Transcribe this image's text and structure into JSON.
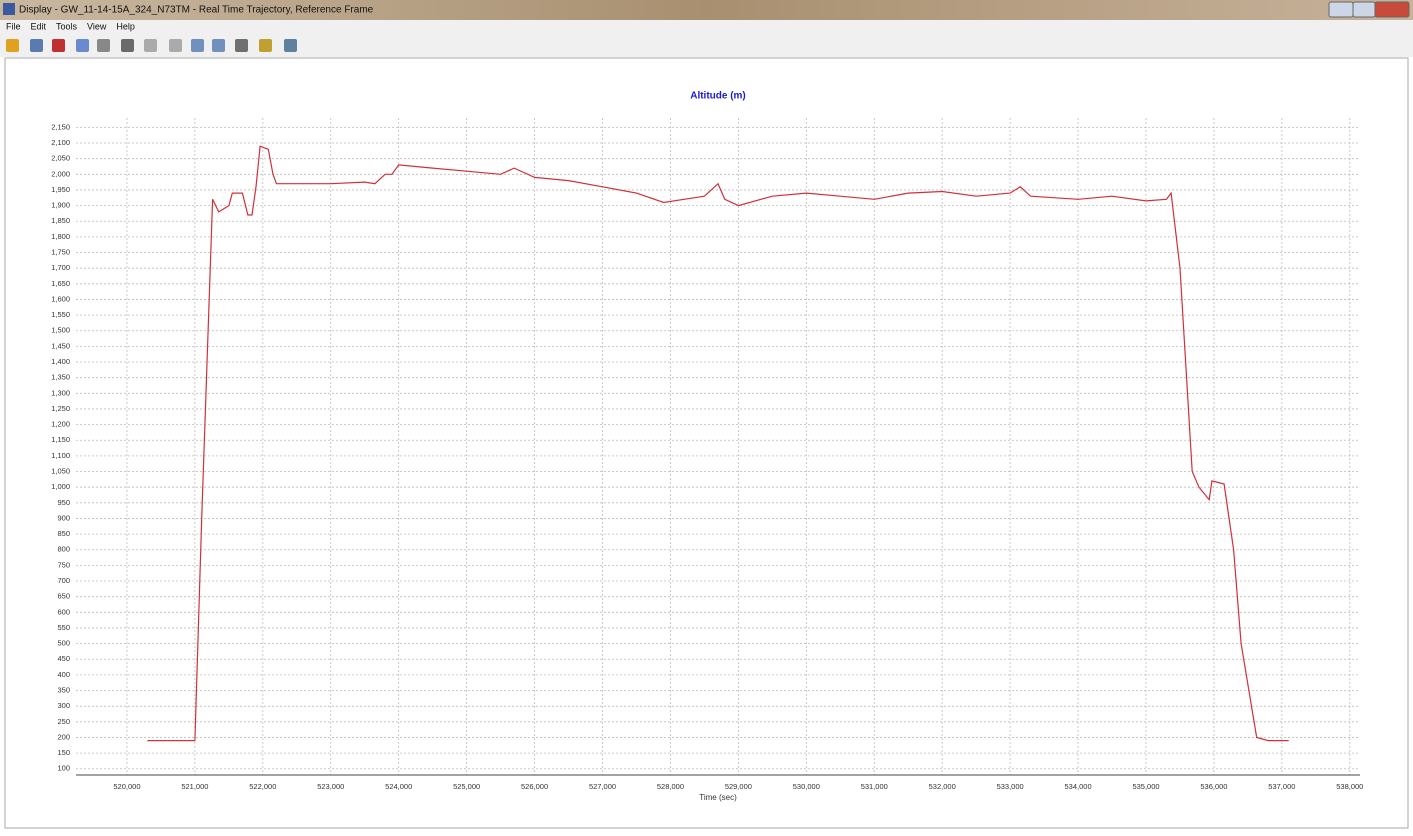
{
  "window": {
    "title": "Display - GW_11-14-15A_324_N73TM - Real Time Trajectory, Reference Frame",
    "menu": [
      "File",
      "Edit",
      "Tools",
      "View",
      "Help"
    ]
  },
  "chart_data": {
    "type": "line",
    "title": "Altitude (m)",
    "x_label": "Time (sec)",
    "color": "#d0303a",
    "grid": true,
    "x": [
      520300,
      521000,
      521100,
      521260,
      521350,
      521500,
      521550,
      521700,
      521780,
      521840,
      521900,
      521960,
      522080,
      522150,
      522200,
      523000,
      523500,
      523650,
      523800,
      523900,
      524000,
      524500,
      525000,
      525500,
      525700,
      526000,
      526500,
      527000,
      527500,
      527900,
      528200,
      528500,
      528700,
      528800,
      529000,
      529500,
      530000,
      530500,
      531000,
      531500,
      532000,
      532500,
      533000,
      533150,
      533300,
      534000,
      534500,
      535000,
      535300,
      535370,
      535500,
      535680,
      535780,
      535930,
      535970,
      536150,
      536290,
      536400,
      536630,
      536800,
      537100
    ],
    "values": [
      190,
      190,
      900,
      1920,
      1880,
      1900,
      1940,
      1940,
      1870,
      1870,
      1960,
      2090,
      2080,
      2000,
      1970,
      1970,
      1975,
      1970,
      2000,
      2000,
      2030,
      2020,
      2010,
      2000,
      2020,
      1990,
      1980,
      1960,
      1940,
      1910,
      1920,
      1930,
      1970,
      1920,
      1900,
      1930,
      1940,
      1930,
      1920,
      1940,
      1945,
      1930,
      1940,
      1960,
      1930,
      1920,
      1930,
      1915,
      1920,
      1940,
      1700,
      1050,
      1000,
      960,
      1020,
      1010,
      800,
      500,
      200,
      190,
      190
    ],
    "xlim": [
      519250,
      538150
    ],
    "ylim": [
      80,
      2180
    ],
    "xticks": [
      {
        "value": 520000,
        "label": "520,000"
      },
      {
        "value": 521000,
        "label": "521,000"
      },
      {
        "value": 522000,
        "label": "522,000"
      },
      {
        "value": 523000,
        "label": "523,000"
      },
      {
        "value": 524000,
        "label": "524,000"
      },
      {
        "value": 525000,
        "label": "525,000"
      },
      {
        "value": 526000,
        "label": "526,000"
      },
      {
        "value": 527000,
        "label": "527,000"
      },
      {
        "value": 528000,
        "label": "528,000"
      },
      {
        "value": 529000,
        "label": "529,000"
      },
      {
        "value": 530000,
        "label": "530,000"
      },
      {
        "value": 531000,
        "label": "531,000"
      },
      {
        "value": 532000,
        "label": "532,000"
      },
      {
        "value": 533000,
        "label": "533,000"
      },
      {
        "value": 534000,
        "label": "534,000"
      },
      {
        "value": 535000,
        "label": "535,000"
      },
      {
        "value": 536000,
        "label": "536,000"
      },
      {
        "value": 537000,
        "label": "537,000"
      },
      {
        "value": 538000,
        "label": "538,000"
      }
    ],
    "yticks": [
      100,
      150,
      200,
      250,
      300,
      350,
      400,
      450,
      500,
      550,
      600,
      650,
      700,
      750,
      800,
      850,
      900,
      950,
      {
        "value": 1000,
        "label": "1,000"
      },
      {
        "value": 1050,
        "label": "1,050"
      },
      {
        "value": 1100,
        "label": "1,100"
      },
      {
        "value": 1150,
        "label": "1,150"
      },
      {
        "value": 1200,
        "label": "1,200"
      },
      {
        "value": 1250,
        "label": "1,250"
      },
      {
        "value": 1300,
        "label": "1,300"
      },
      {
        "value": 1350,
        "label": "1,350"
      },
      {
        "value": 1400,
        "label": "1,400"
      },
      {
        "value": 1450,
        "label": "1,450"
      },
      {
        "value": 1500,
        "label": "1,500"
      },
      {
        "value": 1550,
        "label": "1,550"
      },
      {
        "value": 1600,
        "label": "1,600"
      },
      {
        "value": 1650,
        "label": "1,650"
      },
      {
        "value": 1700,
        "label": "1,700"
      },
      {
        "value": 1750,
        "label": "1,750"
      },
      {
        "value": 1800,
        "label": "1,800"
      },
      {
        "value": 1850,
        "label": "1,850"
      },
      {
        "value": 1900,
        "label": "1,900"
      },
      {
        "value": 1950,
        "label": "1,950"
      },
      {
        "value": 2000,
        "label": "2,000"
      },
      {
        "value": 2050,
        "label": "2,050"
      },
      {
        "value": 2100,
        "label": "2,100"
      },
      {
        "value": 2150,
        "label": "2,150"
      }
    ]
  }
}
